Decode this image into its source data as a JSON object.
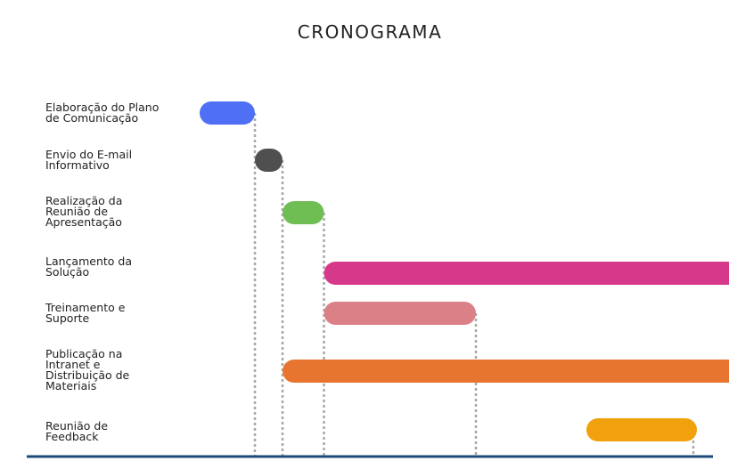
{
  "title": "CRONOGRAMA",
  "tasks": [
    {
      "label": "Elaboração do Plano\nde Comunicação",
      "start": 0,
      "end": 2,
      "color": "#4f6ff5"
    },
    {
      "label": "Envio do E-mail\nInformativo",
      "start": 2,
      "end": 3,
      "color": "#4f4f4f"
    },
    {
      "label": "Realização da\nReunião de\nApresentação",
      "start": 3,
      "end": 4.5,
      "color": "#6fbe54"
    },
    {
      "label": "Lançamento da\nSolução",
      "start": 4.5,
      "end": 99,
      "color": "#d6398a"
    },
    {
      "label": "Treinamento e\nSuporte",
      "start": 4.5,
      "end": 10,
      "color": "#dc8088"
    },
    {
      "label": "Publicação na\nIntranet e\nDistribuição de\nMateriais",
      "start": 3,
      "end": 99,
      "color": "#e8752f"
    },
    {
      "label": "Reunião de\nFeedback",
      "start": 14,
      "end": 18,
      "color": "#f0a10b"
    }
  ],
  "axis_color": "#1b4a78",
  "marker_color": "#a8a8a8"
}
